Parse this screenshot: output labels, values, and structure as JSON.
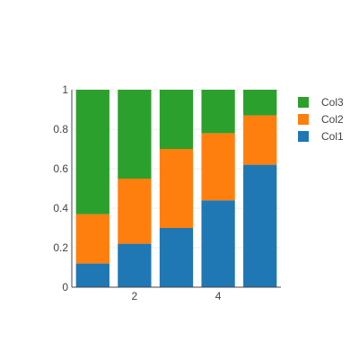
{
  "chart_data": {
    "type": "bar",
    "barmode": "stack-normalized",
    "x": [
      1,
      2,
      3,
      4,
      5
    ],
    "series": [
      {
        "name": "Col1",
        "color": "#1f77b4",
        "values": [
          0.12,
          0.22,
          0.3,
          0.44,
          0.62
        ]
      },
      {
        "name": "Col2",
        "color": "#ff7f0e",
        "values": [
          0.25,
          0.33,
          0.4,
          0.34,
          0.25
        ]
      },
      {
        "name": "Col3",
        "color": "#2ca02c",
        "values": [
          0.63,
          0.45,
          0.3,
          0.22,
          0.13
        ]
      }
    ],
    "ylim": [
      0,
      1
    ],
    "xlim": [
      0.5,
      5.5
    ],
    "yticks": [
      {
        "value": 0,
        "label": "0"
      },
      {
        "value": 0.2,
        "label": "0.2"
      },
      {
        "value": 0.4,
        "label": "0.4"
      },
      {
        "value": 0.6,
        "label": "0.6"
      },
      {
        "value": 0.8,
        "label": "0.8"
      },
      {
        "value": 1,
        "label": "1"
      }
    ],
    "xticks": [
      {
        "value": 2,
        "label": "2"
      },
      {
        "value": 4,
        "label": "4"
      }
    ],
    "grid": true,
    "legend_position": "right",
    "legend_order": [
      "Col3",
      "Col2",
      "Col1"
    ]
  }
}
